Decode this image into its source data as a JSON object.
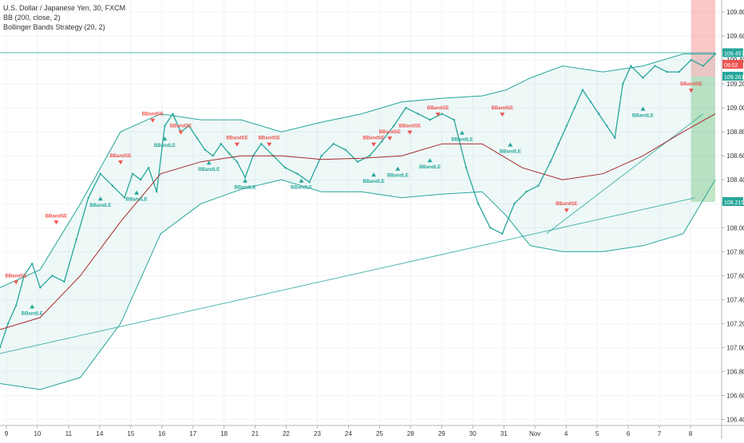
{
  "legend": {
    "title": "U.S. Dollar / Japanese Yen, 30, FXCM",
    "bb": "BB (200, close, 2)",
    "strategy": "Bollinger Bands Strategy (20, 2)"
  },
  "chart_data": {
    "type": "line",
    "title": "U.S. Dollar / Japanese Yen, 30, FXCM",
    "ylim": [
      106.35,
      109.9
    ],
    "grid": true,
    "y_ticks": [
      "109.800",
      "109.600",
      "109.400",
      "109.200",
      "109.000",
      "108.800",
      "108.600",
      "108.400",
      "108.200",
      "108.000",
      "107.800",
      "107.600",
      "107.400",
      "107.200",
      "107.000",
      "106.800",
      "106.600",
      "106.400"
    ],
    "x_ticks": [
      "9",
      "10",
      "11",
      "14",
      "15",
      "16",
      "17",
      "18",
      "21",
      "22",
      "23",
      "24",
      "25",
      "28",
      "29",
      "30",
      "31",
      "Nov",
      "4",
      "5",
      "6",
      "7",
      "8"
    ],
    "price_labels": [
      {
        "text": "109.457",
        "color": "#26a69a"
      },
      {
        "text": "09:02",
        "color": "#ef5350"
      },
      {
        "text": "109.261",
        "color": "#26a69a"
      },
      {
        "text": "108.215",
        "color": "#26a69a"
      }
    ],
    "series": [
      {
        "name": "Close",
        "color": "#26a69a",
        "x": [
          0,
          2,
          4,
          6,
          8,
          10,
          13,
          16,
          19,
          22,
          25,
          28,
          31,
          33,
          35,
          37,
          39,
          41,
          43,
          45,
          47,
          49,
          51,
          53,
          55,
          57,
          59,
          61,
          63,
          65,
          68,
          71,
          74,
          77,
          80,
          83,
          86,
          89,
          92,
          95,
          98,
          101,
          104,
          107,
          110,
          113,
          116,
          119,
          122,
          125,
          128,
          131,
          134,
          137,
          139,
          141,
          143,
          145,
          147,
          149,
          151,
          153,
          155,
          157,
          160,
          163,
          166,
          169,
          172,
          175,
          178
        ],
        "y": [
          107.0,
          107.2,
          107.35,
          107.6,
          107.7,
          107.5,
          107.6,
          107.55,
          107.9,
          108.25,
          108.45,
          108.35,
          108.25,
          108.45,
          108.4,
          108.5,
          108.3,
          108.85,
          108.95,
          108.8,
          108.85,
          108.75,
          108.65,
          108.6,
          108.7,
          108.62,
          108.55,
          108.42,
          108.6,
          108.7,
          108.6,
          108.5,
          108.45,
          108.38,
          108.6,
          108.7,
          108.65,
          108.55,
          108.6,
          108.72,
          108.85,
          109.0,
          108.95,
          108.9,
          108.95,
          108.9,
          108.5,
          108.2,
          108.0,
          107.95,
          108.2,
          108.3,
          108.35,
          108.55,
          108.7,
          108.85,
          109.0,
          109.15,
          109.05,
          108.95,
          108.85,
          108.75,
          109.2,
          109.35,
          109.25,
          109.35,
          109.3,
          109.3,
          109.4,
          109.35,
          109.45
        ]
      },
      {
        "name": "BB basis (200)",
        "color": "#a52a2a",
        "x": [
          0,
          10,
          20,
          30,
          40,
          50,
          60,
          70,
          80,
          90,
          100,
          110,
          120,
          130,
          140,
          150,
          160,
          170,
          178
        ],
        "y": [
          107.15,
          107.25,
          107.6,
          108.05,
          108.45,
          108.55,
          108.6,
          108.6,
          108.57,
          108.58,
          108.6,
          108.7,
          108.7,
          108.5,
          108.4,
          108.45,
          108.6,
          108.8,
          108.95
        ]
      },
      {
        "name": "BB upper",
        "color": "#26a69a",
        "x": [
          0,
          10,
          20,
          30,
          40,
          50,
          60,
          70,
          80,
          90,
          100,
          110,
          120,
          126,
          132,
          140,
          150,
          160,
          170,
          178
        ],
        "y": [
          107.5,
          107.65,
          108.2,
          108.8,
          108.95,
          108.9,
          108.9,
          108.8,
          108.88,
          108.95,
          109.05,
          109.08,
          109.1,
          109.15,
          109.25,
          109.35,
          109.3,
          109.35,
          109.45,
          109.45
        ]
      },
      {
        "name": "BB lower",
        "color": "#26a69a",
        "x": [
          0,
          10,
          20,
          30,
          40,
          50,
          60,
          70,
          80,
          90,
          100,
          110,
          120,
          126,
          132,
          140,
          150,
          160,
          170,
          178
        ],
        "y": [
          106.7,
          106.65,
          106.75,
          107.2,
          107.95,
          108.2,
          108.32,
          108.4,
          108.3,
          108.3,
          108.25,
          108.28,
          108.3,
          108.1,
          107.85,
          107.8,
          107.8,
          107.85,
          107.95,
          108.4
        ]
      }
    ],
    "trendlines": [
      {
        "x": [
          0,
          173
        ],
        "y": [
          106.95,
          108.25
        ],
        "color": "#26a69a"
      },
      {
        "x": [
          136,
          175
        ],
        "y": [
          107.95,
          108.95
        ],
        "color": "#26a69a"
      },
      {
        "x": [
          0,
          178
        ],
        "y": [
          109.46,
          109.46
        ],
        "color": "#26a69a"
      }
    ],
    "signals": [
      {
        "label": "BBandSE",
        "x": 4,
        "y": 107.6,
        "dir": "sell"
      },
      {
        "label": "BBandLE",
        "x": 8,
        "y": 107.3,
        "dir": "buy"
      },
      {
        "label": "BBandSE",
        "x": 14,
        "y": 108.1,
        "dir": "sell"
      },
      {
        "label": "BBandLE",
        "x": 25,
        "y": 108.2,
        "dir": "buy"
      },
      {
        "label": "BBandSE",
        "x": 30,
        "y": 108.6,
        "dir": "sell"
      },
      {
        "label": "BBandLE",
        "x": 34,
        "y": 108.25,
        "dir": "buy"
      },
      {
        "label": "BBandSE",
        "x": 38,
        "y": 108.95,
        "dir": "sell"
      },
      {
        "label": "BBandLE",
        "x": 41,
        "y": 108.7,
        "dir": "buy"
      },
      {
        "label": "BBandSE",
        "x": 45,
        "y": 108.85,
        "dir": "sell"
      },
      {
        "label": "BBandLE",
        "x": 52,
        "y": 108.5,
        "dir": "buy"
      },
      {
        "label": "BBandSE",
        "x": 59,
        "y": 108.75,
        "dir": "sell"
      },
      {
        "label": "BBandLE",
        "x": 61,
        "y": 108.35,
        "dir": "buy"
      },
      {
        "label": "BBandSE",
        "x": 67,
        "y": 108.75,
        "dir": "sell"
      },
      {
        "label": "BBandLE",
        "x": 75,
        "y": 108.35,
        "dir": "buy"
      },
      {
        "label": "BBandSE",
        "x": 93,
        "y": 108.75,
        "dir": "sell"
      },
      {
        "label": "BBandLE",
        "x": 93,
        "y": 108.4,
        "dir": "buy"
      },
      {
        "label": "BBandSE",
        "x": 97,
        "y": 108.8,
        "dir": "sell"
      },
      {
        "label": "BBandLE",
        "x": 99,
        "y": 108.45,
        "dir": "buy"
      },
      {
        "label": "BBandSE",
        "x": 102,
        "y": 108.85,
        "dir": "sell"
      },
      {
        "label": "BBandLE",
        "x": 107,
        "y": 108.52,
        "dir": "buy"
      },
      {
        "label": "BBandSE",
        "x": 109,
        "y": 109.0,
        "dir": "sell"
      },
      {
        "label": "BBandLE",
        "x": 115,
        "y": 108.75,
        "dir": "buy"
      },
      {
        "label": "BBandSE",
        "x": 125,
        "y": 109.0,
        "dir": "sell"
      },
      {
        "label": "BBandLE",
        "x": 127,
        "y": 108.65,
        "dir": "buy"
      },
      {
        "label": "BBandSE",
        "x": 141,
        "y": 108.2,
        "dir": "sell"
      },
      {
        "label": "BBandLE",
        "x": 160,
        "y": 108.95,
        "dir": "buy"
      },
      {
        "label": "BBandSE",
        "x": 172,
        "y": 109.2,
        "dir": "sell"
      }
    ],
    "zones": [
      {
        "type": "loss",
        "color": "#ef5350",
        "y_top": 109.9,
        "y_bottom": 109.26,
        "x_start": 172,
        "x_end": 178
      },
      {
        "type": "profit",
        "color": "#4caf50",
        "y_top": 109.26,
        "y_bottom": 108.215,
        "x_start": 172,
        "x_end": 178
      }
    ]
  }
}
